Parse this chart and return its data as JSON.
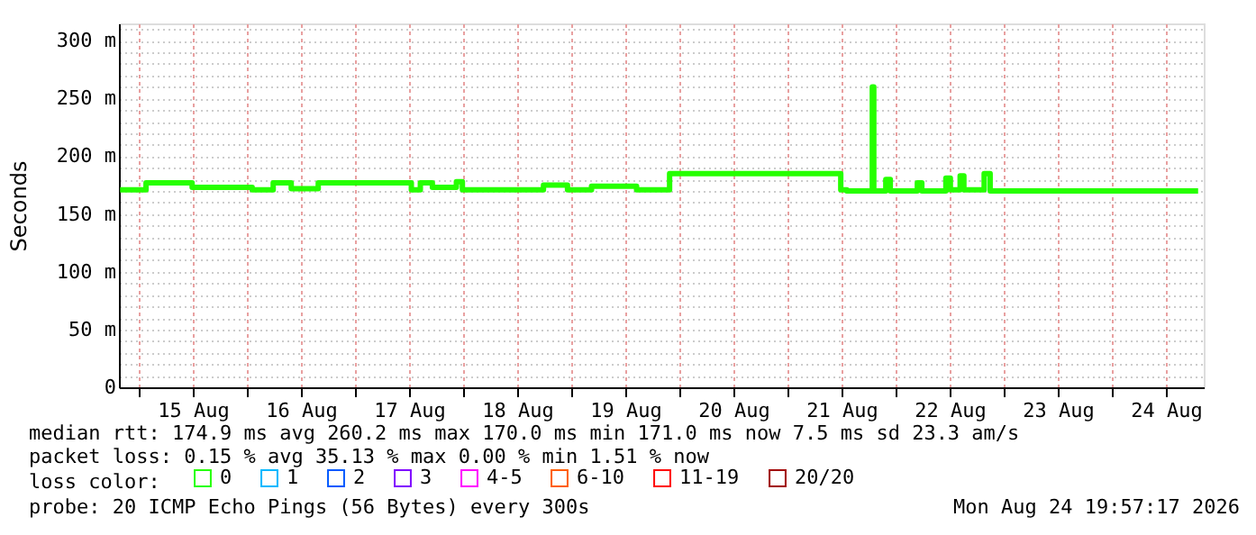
{
  "chart_data": {
    "type": "step",
    "ylabel": "Seconds",
    "legend_title": "loss color:",
    "x": [
      "2026-08-14T19:50",
      "2026-08-15T01:36",
      "2026-08-15T11:50",
      "2026-08-16T01:10",
      "2026-08-16T05:50",
      "2026-08-16T09:50",
      "2026-08-16T15:50",
      "2026-08-17T12:30",
      "2026-08-17T14:30",
      "2026-08-17T17:10",
      "2026-08-17T22:30",
      "2026-08-17T23:50",
      "2026-08-18T17:50",
      "2026-08-18T23:10",
      "2026-08-19T04:30",
      "2026-08-19T14:30",
      "2026-08-19T21:50",
      "2026-08-21T11:50",
      "2026-08-21T13:10",
      "2026-08-21T18:50",
      "2026-08-21T19:10",
      "2026-08-21T21:50",
      "2026-08-21T22:50",
      "2026-08-22T04:50",
      "2026-08-22T05:50",
      "2026-08-22T11:10",
      "2026-08-22T12:10",
      "2026-08-22T14:20",
      "2026-08-22T15:10",
      "2026-08-22T19:40",
      "2026-08-22T21:00",
      "2026-08-24T19:10"
    ],
    "series": [
      {
        "name": "0",
        "color": "#26ff00",
        "values": [
          171,
          177,
          173,
          171,
          177,
          172,
          177,
          171,
          177,
          173,
          178,
          171,
          175,
          171,
          174,
          171,
          185,
          171,
          170,
          260,
          170,
          180,
          170,
          177,
          170,
          181,
          171,
          183,
          171,
          185,
          170,
          170
        ]
      },
      {
        "name": "1",
        "color": "#00b8ff",
        "values": [
          null,
          null,
          null,
          null,
          null,
          null,
          null,
          null,
          null,
          null,
          null,
          null,
          null,
          null,
          null,
          null,
          null,
          null,
          null,
          null,
          null,
          null,
          null,
          null,
          null,
          null,
          null,
          null,
          null,
          null,
          null,
          null
        ]
      },
      {
        "name": "2",
        "color": "#0059ff",
        "values": [
          null,
          null,
          null,
          null,
          null,
          null,
          null,
          null,
          null,
          null,
          null,
          null,
          null,
          null,
          null,
          null,
          null,
          null,
          null,
          null,
          null,
          null,
          null,
          null,
          null,
          null,
          null,
          null,
          null,
          null,
          null,
          null
        ]
      },
      {
        "name": "3",
        "color": "#7f00ff",
        "values": [
          null,
          null,
          null,
          null,
          null,
          null,
          null,
          null,
          null,
          null,
          null,
          null,
          null,
          null,
          null,
          null,
          null,
          null,
          null,
          null,
          null,
          null,
          null,
          null,
          null,
          null,
          null,
          null,
          null,
          null,
          null,
          null
        ]
      },
      {
        "name": "4-5",
        "color": "#ff00ff",
        "values": [
          null,
          null,
          null,
          null,
          null,
          null,
          null,
          null,
          null,
          null,
          null,
          null,
          null,
          null,
          null,
          null,
          null,
          null,
          null,
          null,
          null,
          null,
          null,
          null,
          null,
          null,
          null,
          null,
          null,
          null,
          null,
          null
        ]
      },
      {
        "name": "6-10",
        "color": "#ff5e00",
        "values": [
          null,
          null,
          null,
          null,
          null,
          null,
          null,
          null,
          null,
          null,
          null,
          null,
          null,
          null,
          null,
          null,
          null,
          null,
          null,
          null,
          null,
          null,
          null,
          null,
          null,
          null,
          null,
          null,
          null,
          null,
          null,
          null
        ]
      },
      {
        "name": "11-19",
        "color": "#ff0000",
        "values": [
          null,
          null,
          null,
          null,
          null,
          null,
          null,
          null,
          null,
          null,
          null,
          null,
          null,
          null,
          null,
          null,
          null,
          null,
          null,
          null,
          null,
          null,
          null,
          null,
          null,
          null,
          null,
          null,
          null,
          null,
          null,
          null
        ]
      },
      {
        "name": "20/20",
        "color": "#a10000",
        "values": [
          null,
          null,
          null,
          null,
          null,
          null,
          null,
          null,
          null,
          null,
          null,
          null,
          null,
          null,
          null,
          null,
          null,
          null,
          null,
          null,
          null,
          null,
          null,
          null,
          null,
          null,
          null,
          null,
          null,
          null,
          null,
          null
        ]
      }
    ],
    "xlim": [
      "2026-08-14T19:35",
      "2026-08-24T20:25"
    ],
    "xticks": [
      {
        "value": "2026-08-15T00:00",
        "label": null
      },
      {
        "value": "2026-08-15T12:00",
        "label": "15 Aug"
      },
      {
        "value": "2026-08-16T00:00",
        "label": null
      },
      {
        "value": "2026-08-16T12:00",
        "label": "16 Aug"
      },
      {
        "value": "2026-08-17T00:00",
        "label": null
      },
      {
        "value": "2026-08-17T12:00",
        "label": "17 Aug"
      },
      {
        "value": "2026-08-18T00:00",
        "label": null
      },
      {
        "value": "2026-08-18T12:00",
        "label": "18 Aug"
      },
      {
        "value": "2026-08-19T00:00",
        "label": null
      },
      {
        "value": "2026-08-19T12:00",
        "label": "19 Aug"
      },
      {
        "value": "2026-08-20T00:00",
        "label": null
      },
      {
        "value": "2026-08-20T12:00",
        "label": "20 Aug"
      },
      {
        "value": "2026-08-21T00:00",
        "label": null
      },
      {
        "value": "2026-08-21T12:00",
        "label": "21 Aug"
      },
      {
        "value": "2026-08-22T00:00",
        "label": null
      },
      {
        "value": "2026-08-22T12:00",
        "label": "22 Aug"
      },
      {
        "value": "2026-08-23T00:00",
        "label": null
      },
      {
        "value": "2026-08-23T12:00",
        "label": "23 Aug"
      },
      {
        "value": "2026-08-24T00:00",
        "label": null
      },
      {
        "value": "2026-08-24T12:00",
        "label": "24 Aug"
      }
    ],
    "ylim": [
      0,
      315
    ],
    "yticks": [
      0,
      {
        "value": 10,
        "label": null
      },
      {
        "value": 20,
        "label": null
      },
      {
        "value": 30,
        "label": null
      },
      {
        "value": 40,
        "label": null
      },
      {
        "value": 50,
        "label": "50 m"
      },
      {
        "value": 60,
        "label": null
      },
      {
        "value": 70,
        "label": null
      },
      {
        "value": 80,
        "label": null
      },
      {
        "value": 90,
        "label": null
      },
      {
        "value": 100,
        "label": "100 m"
      },
      {
        "value": 110,
        "label": null
      },
      {
        "value": 120,
        "label": null
      },
      {
        "value": 130,
        "label": null
      },
      {
        "value": 140,
        "label": null
      },
      {
        "value": 150,
        "label": "150 m"
      },
      {
        "value": 160,
        "label": null
      },
      {
        "value": 170,
        "label": null
      },
      {
        "value": 180,
        "label": null
      },
      {
        "value": 190,
        "label": null
      },
      {
        "value": 200,
        "label": "200 m"
      },
      {
        "value": 210,
        "label": null
      },
      {
        "value": 220,
        "label": null
      },
      {
        "value": 230,
        "label": null
      },
      {
        "value": 240,
        "label": null
      },
      {
        "value": 250,
        "label": "250 m"
      },
      {
        "value": 260,
        "label": null
      },
      {
        "value": 270,
        "label": null
      },
      {
        "value": 280,
        "label": null
      },
      {
        "value": 290,
        "label": null
      },
      {
        "value": 300,
        "label": "300 m"
      },
      {
        "value": 310,
        "label": null
      }
    ],
    "grid": true,
    "legend": "bottom",
    "line_style": "solid",
    "marker": "none",
    "annotations": [
      "median rtt:  174.9 ms avg  260.2 ms max  170.0 ms min  171.0 ms now  7.5 ms sd  23.3   am/s",
      "packet loss: 0.15 % avg  35.13 % max  0.00 % min  1.51 % now",
      "probe:       20 ICMP Echo Pings (56 Bytes) every 300s",
      "Mon Aug 24 19:57:17 2026"
    ]
  }
}
